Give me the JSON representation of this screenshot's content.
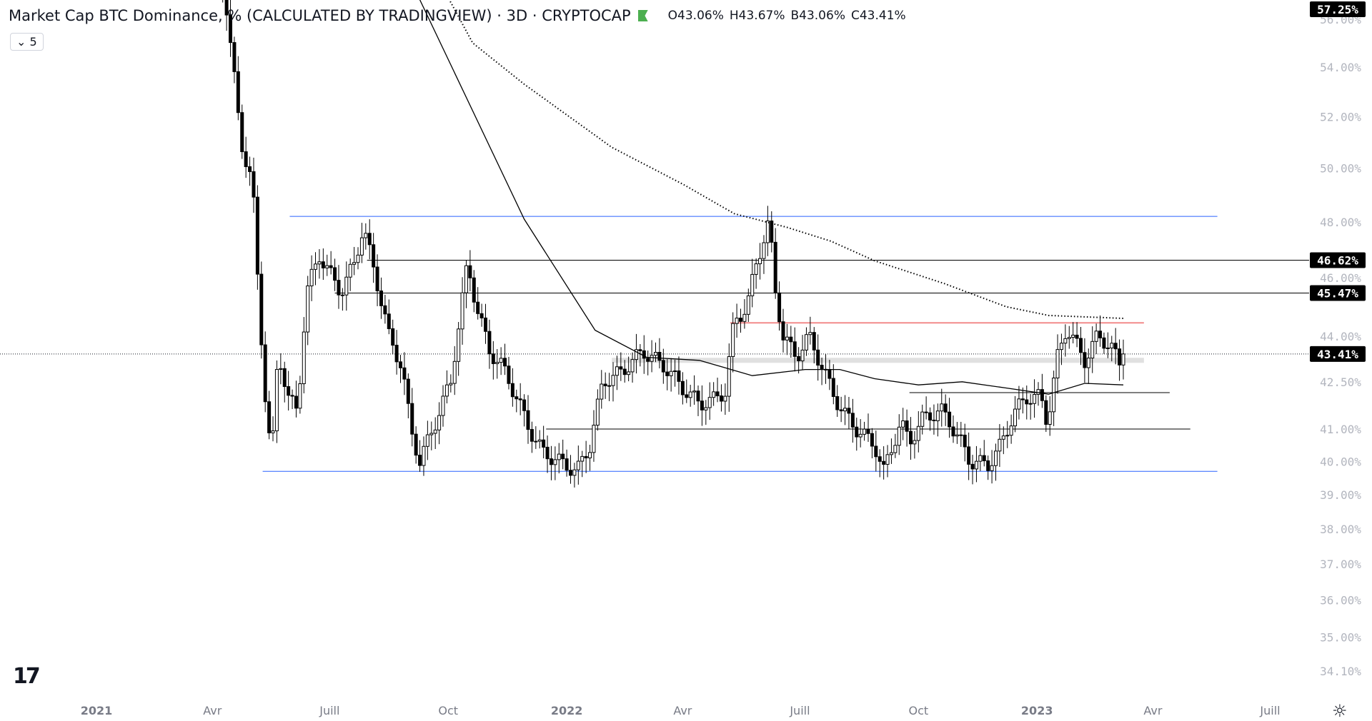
{
  "header": {
    "title": "Market Cap BTC Dominance, % (CALCULATED BY TRADINGVIEW) · 3D · CRYPTOCAP",
    "open": "O43.06%",
    "high": "H43.67%",
    "low": "B43.06%",
    "close": "C43.41%",
    "legend_toggle": "5",
    "flag_color": "#4caf50"
  },
  "chart_data": {
    "type": "candlestick",
    "title": "Market Cap BTC Dominance, %",
    "interval": "3D",
    "scale": "log",
    "ylim": [
      33.9,
      58.5
    ],
    "y_ticks": [
      "56.00%",
      "54.00%",
      "52.00%",
      "50.00%",
      "48.00%",
      "46.00%",
      "44.00%",
      "42.50%",
      "41.00%",
      "40.00%",
      "39.00%",
      "38.00%",
      "37.00%",
      "36.00%",
      "35.00%",
      "34.10%"
    ],
    "y_tick_values": [
      56,
      54,
      52,
      50,
      48,
      46,
      44,
      42.5,
      41,
      40,
      39,
      38,
      37,
      36,
      35,
      34.1
    ],
    "x_ticks": [
      {
        "label": "2021",
        "day": 0
      },
      {
        "label": "Avr",
        "day": 90
      },
      {
        "label": "Juill",
        "day": 181
      },
      {
        "label": "Oct",
        "day": 273
      },
      {
        "label": "2022",
        "day": 365
      },
      {
        "label": "Avr",
        "day": 455
      },
      {
        "label": "Juill",
        "day": 546
      },
      {
        "label": "Oct",
        "day": 638
      },
      {
        "label": "2023",
        "day": 730
      },
      {
        "label": "Avr",
        "day": 820
      },
      {
        "label": "Juill",
        "day": 911
      }
    ],
    "x_unit": "days since 2021-01-01",
    "close_path": [
      [
        95,
        58.5
      ],
      [
        100,
        57
      ],
      [
        112,
        51
      ],
      [
        121,
        49.5
      ],
      [
        125,
        46
      ],
      [
        130,
        42.5
      ],
      [
        136,
        40
      ],
      [
        141,
        43.5
      ],
      [
        149,
        42
      ],
      [
        156,
        41.5
      ],
      [
        163,
        45.5
      ],
      [
        173,
        46.8
      ],
      [
        183,
        46
      ],
      [
        190,
        45.5
      ],
      [
        200,
        46.5
      ],
      [
        207,
        47.8
      ],
      [
        217,
        46
      ],
      [
        227,
        44
      ],
      [
        237,
        43
      ],
      [
        244,
        41
      ],
      [
        251,
        40
      ],
      [
        261,
        41
      ],
      [
        275,
        42.5
      ],
      [
        288,
        46.5
      ],
      [
        295,
        45
      ],
      [
        305,
        43.5
      ],
      [
        315,
        43
      ],
      [
        326,
        42
      ],
      [
        336,
        41
      ],
      [
        346,
        40.3
      ],
      [
        359,
        40
      ],
      [
        373,
        39.7
      ],
      [
        383,
        40.5
      ],
      [
        393,
        42.5
      ],
      [
        407,
        42.8
      ],
      [
        424,
        43.5
      ],
      [
        441,
        43
      ],
      [
        455,
        42.3
      ],
      [
        468,
        41.8
      ],
      [
        478,
        41.9
      ],
      [
        488,
        42.2
      ],
      [
        495,
        44.5
      ],
      [
        505,
        45
      ],
      [
        512,
        46.5
      ],
      [
        522,
        48
      ],
      [
        527,
        45.5
      ],
      [
        533,
        44
      ],
      [
        543,
        43.3
      ],
      [
        553,
        44
      ],
      [
        563,
        43
      ],
      [
        573,
        42
      ],
      [
        580,
        41.5
      ],
      [
        590,
        41
      ],
      [
        604,
        40.5
      ],
      [
        611,
        39.7
      ],
      [
        618,
        40.5
      ],
      [
        624,
        41.2
      ],
      [
        631,
        40.6
      ],
      [
        641,
        41.3
      ],
      [
        655,
        41.6
      ],
      [
        661,
        41.3
      ],
      [
        672,
        40.5
      ],
      [
        678,
        40
      ],
      [
        692,
        39.9
      ],
      [
        702,
        40.5
      ],
      [
        712,
        41.5
      ],
      [
        722,
        42
      ],
      [
        733,
        42
      ],
      [
        738,
        41.2
      ],
      [
        746,
        43.3
      ],
      [
        753,
        44.3
      ],
      [
        767,
        43.2
      ],
      [
        777,
        44
      ],
      [
        787,
        43.7
      ],
      [
        794,
        43.06
      ],
      [
        797,
        43.41
      ]
    ],
    "series": [
      {
        "name": "MA solid",
        "style": "solid",
        "points": [
          [
            237,
            58.5
          ],
          [
            332,
            48.1
          ],
          [
            387,
            44.2
          ],
          [
            427,
            43.3
          ],
          [
            468,
            43.2
          ],
          [
            509,
            42.7
          ],
          [
            550,
            42.9
          ],
          [
            577,
            42.9
          ],
          [
            604,
            42.6
          ],
          [
            638,
            42.4
          ],
          [
            672,
            42.5
          ],
          [
            706,
            42.3
          ],
          [
            739,
            42.1
          ],
          [
            767,
            42.45
          ],
          [
            797,
            42.4
          ]
        ]
      },
      {
        "name": "MA dotted",
        "style": "dotted",
        "points": [
          [
            258,
            58.5
          ],
          [
            292,
            55
          ],
          [
            332,
            53.3
          ],
          [
            400,
            50.8
          ],
          [
            455,
            49.4
          ],
          [
            495,
            48.3
          ],
          [
            536,
            47.8
          ],
          [
            570,
            47.3
          ],
          [
            604,
            46.6
          ],
          [
            658,
            45.8
          ],
          [
            706,
            45.0
          ],
          [
            739,
            44.7
          ],
          [
            797,
            44.6
          ]
        ]
      }
    ],
    "levels": [
      {
        "value": 48.2,
        "from": 150,
        "to": 870,
        "color": "#2962ff",
        "width": 1
      },
      {
        "value": 39.7,
        "from": 129,
        "to": 870,
        "color": "#2962ff",
        "width": 1
      },
      {
        "value": 46.62,
        "from": 210,
        "to": null,
        "color": "#000000",
        "width": 1
      },
      {
        "value": 45.47,
        "from": 185,
        "to": null,
        "color": "#000000",
        "width": 1
      },
      {
        "value": 44.45,
        "from": 492,
        "to": 813,
        "color": "#f28b8b",
        "width": 2
      },
      {
        "value": 43.2,
        "from": 400,
        "to": 813,
        "color": "#e0e0e0",
        "width": 7
      },
      {
        "value": 42.15,
        "from": 631,
        "to": 833,
        "color": "#000000",
        "width": 1
      },
      {
        "value": 41.0,
        "from": 349,
        "to": 849,
        "color": "#000000",
        "width": 1
      }
    ],
    "price_badges": [
      "57.25%",
      "46.62%",
      "45.47%",
      "43.41%"
    ],
    "price_badge_values": [
      57.25,
      46.62,
      45.47,
      43.41
    ],
    "last_price": 43.41,
    "up_color": "#ffffff",
    "down_color": "#000000"
  }
}
